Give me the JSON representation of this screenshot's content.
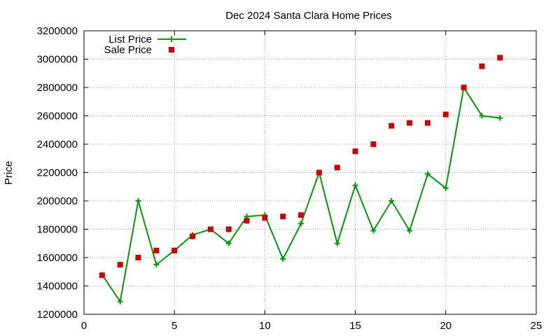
{
  "chart_data": {
    "type": "line",
    "title": "Dec 2024 Santa Clara Home Prices",
    "xlabel": "",
    "ylabel": "Price",
    "xlim": [
      0,
      25
    ],
    "ylim": [
      1200000,
      3200000
    ],
    "xticks": [
      0,
      5,
      10,
      15,
      20,
      25
    ],
    "yticks": [
      1200000,
      1400000,
      1600000,
      1800000,
      2000000,
      2200000,
      2400000,
      2600000,
      2800000,
      3000000,
      3200000
    ],
    "grid": true,
    "legend_position": "top-left",
    "series": [
      {
        "name": "List Price",
        "style": "line-plus",
        "color": "#009900",
        "x": [
          1,
          2,
          3,
          4,
          5,
          6,
          7,
          8,
          9,
          10,
          11,
          12,
          13,
          14,
          15,
          16,
          17,
          18,
          19,
          20,
          21,
          22,
          23
        ],
        "y": [
          1480000,
          1290000,
          2000000,
          1550000,
          1650000,
          1760000,
          1800000,
          1700000,
          1890000,
          1900000,
          1590000,
          1840000,
          2200000,
          1700000,
          2110000,
          1790000,
          2000000,
          1790000,
          2190000,
          2090000,
          2800000,
          2600000,
          2585000
        ]
      },
      {
        "name": "Sale Price",
        "style": "square-points",
        "color": "#cc0000",
        "x": [
          1,
          2,
          3,
          4,
          5,
          6,
          7,
          8,
          9,
          10,
          11,
          12,
          13,
          14,
          15,
          16,
          17,
          18,
          19,
          20,
          21,
          22,
          23
        ],
        "y": [
          1475000,
          1550000,
          1600000,
          1650000,
          1650000,
          1750000,
          1800000,
          1800000,
          1860000,
          1880000,
          1890000,
          1900000,
          2200000,
          2235000,
          2350000,
          2400000,
          2530000,
          2550000,
          2550000,
          2610000,
          2800000,
          2950000,
          3010000
        ]
      }
    ]
  }
}
